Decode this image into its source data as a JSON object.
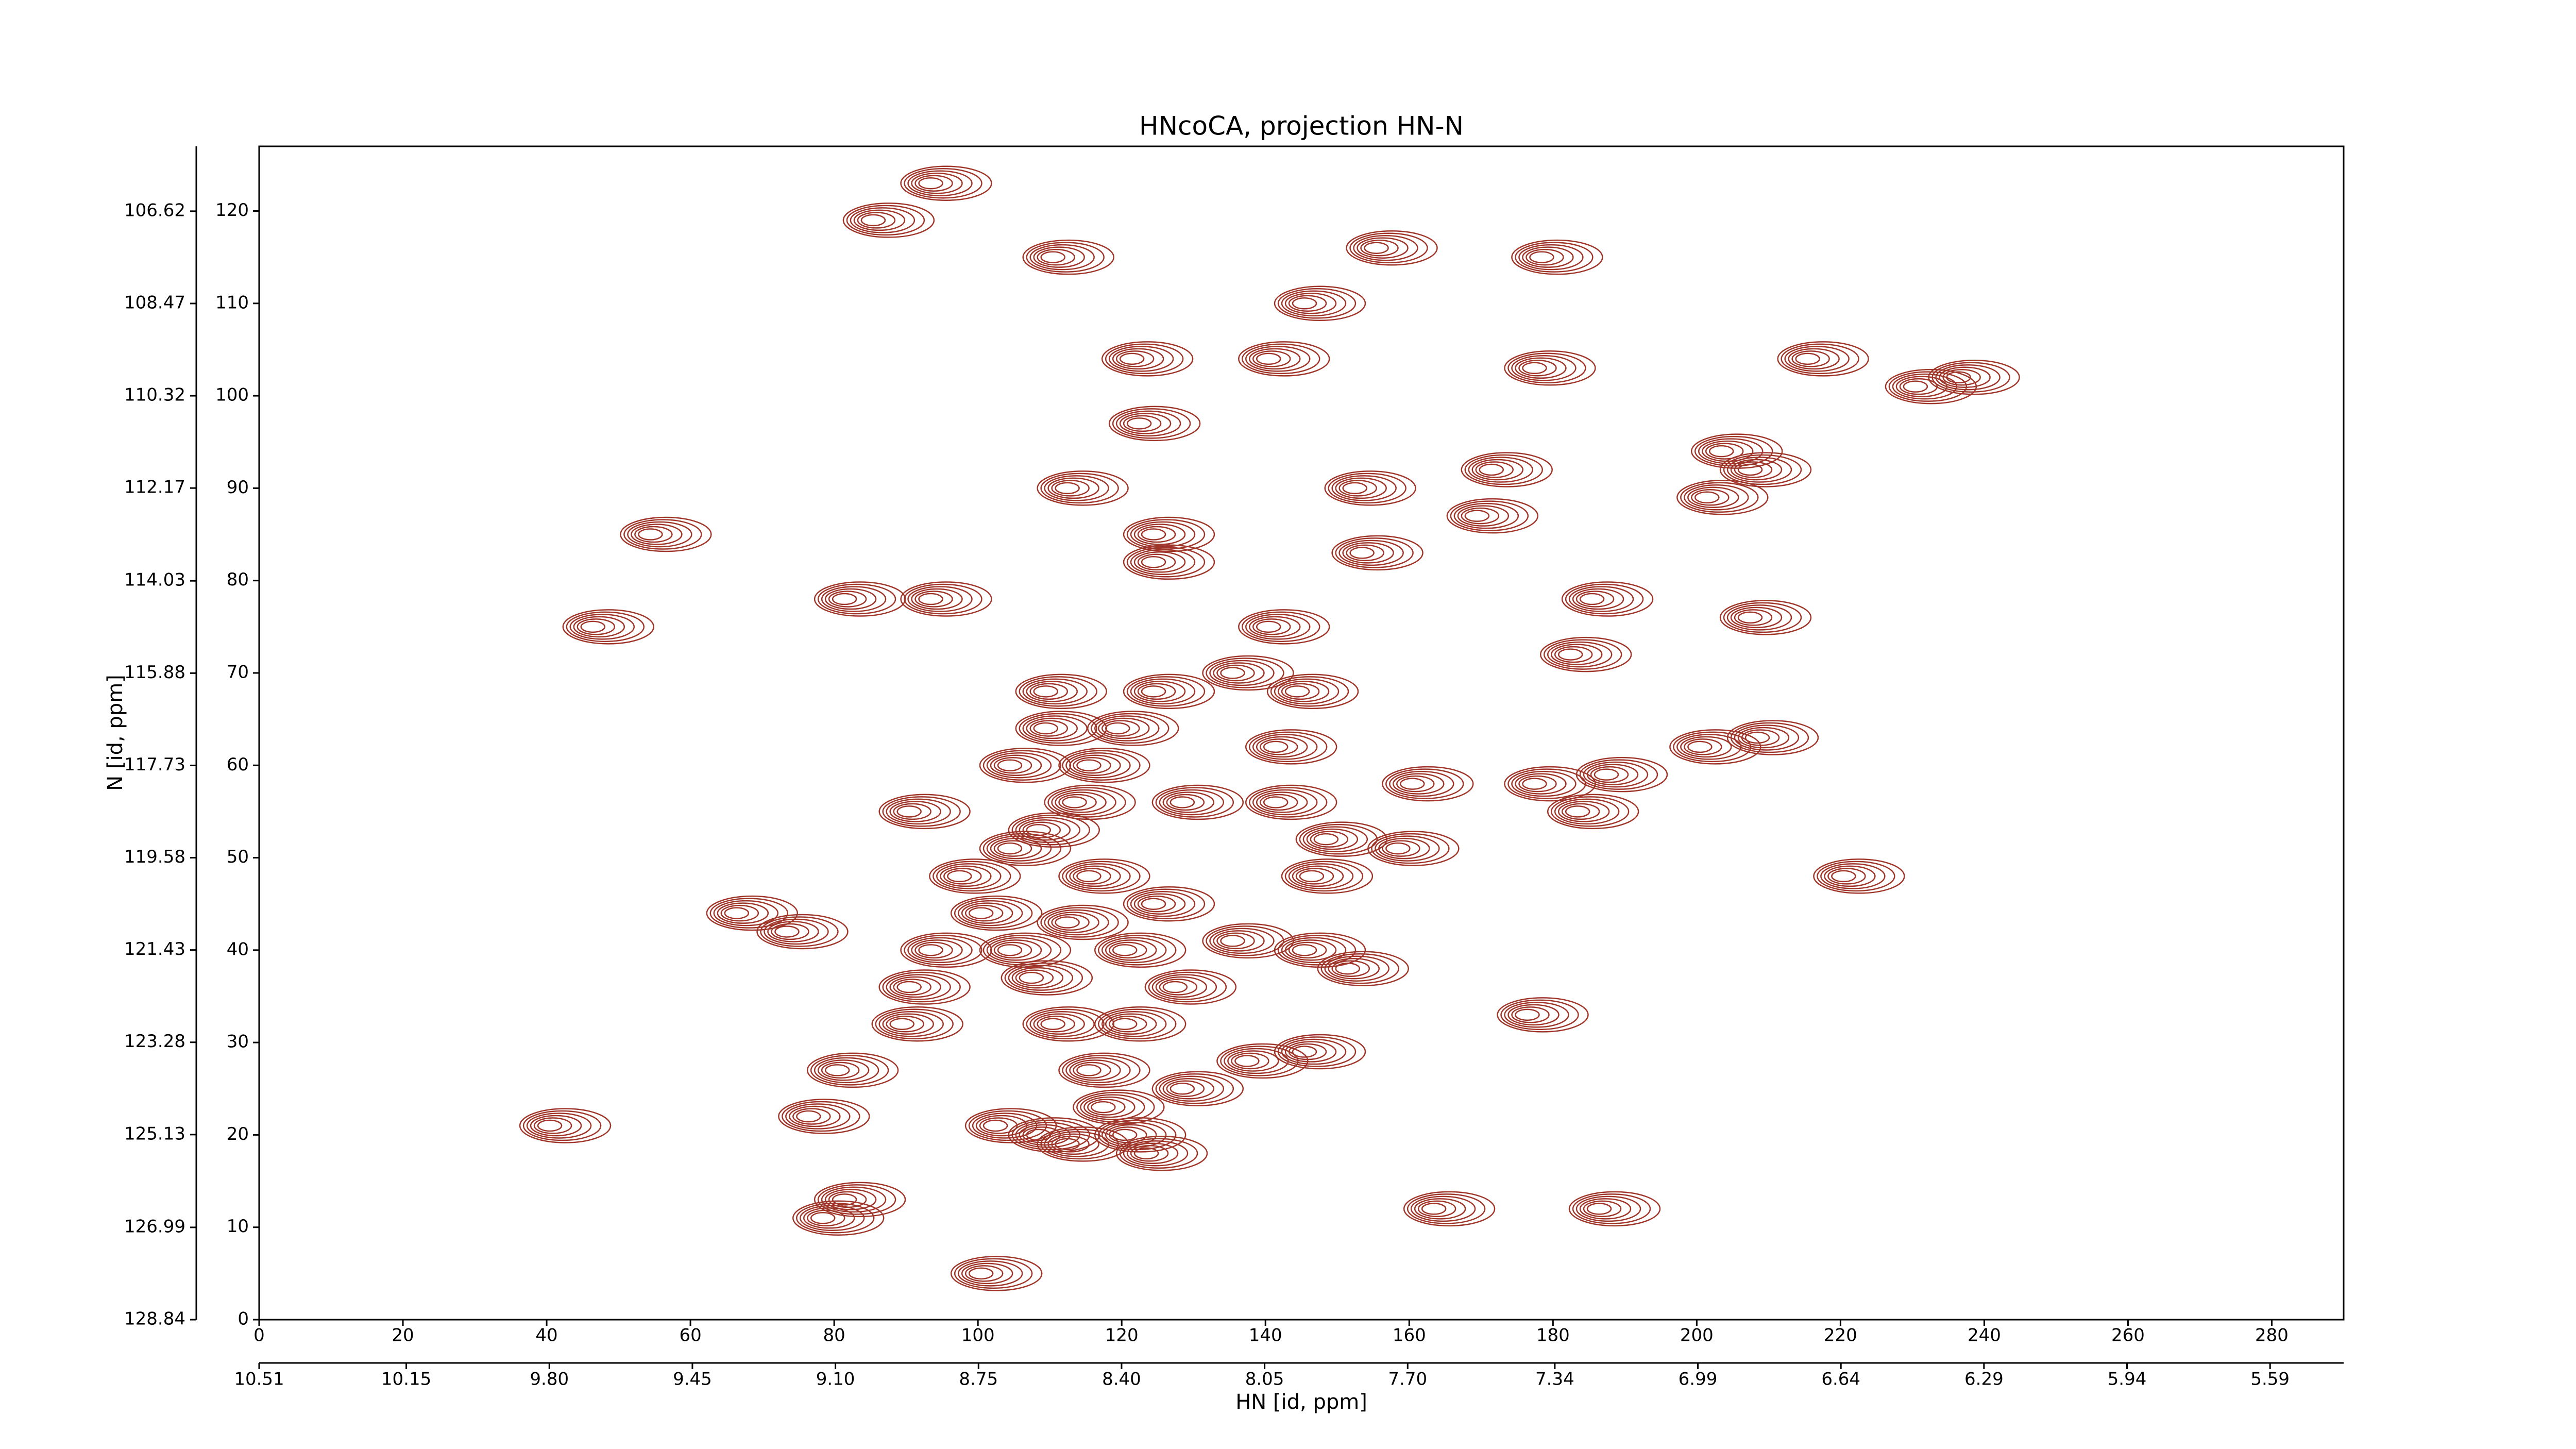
{
  "chart_data": {
    "type": "contour",
    "title": "HNcoCA, projection HN-N",
    "xlabel": "HN [id, ppm]",
    "ylabel": "N [id, ppm]",
    "color": "#a0362a",
    "x": [
      93,
      85,
      110,
      155,
      178,
      145,
      140,
      177,
      215,
      230,
      236,
      121,
      122,
      112,
      152,
      171,
      169,
      201,
      207,
      203,
      54,
      124,
      153,
      124,
      81,
      93,
      185,
      46,
      140,
      207,
      182,
      135,
      144,
      109,
      124,
      109,
      119,
      208,
      200,
      141,
      104,
      115,
      160,
      177,
      187,
      113,
      128,
      141,
      183,
      90,
      108,
      148,
      158,
      104,
      220,
      97,
      146,
      115,
      112,
      124,
      100,
      66,
      73,
      93,
      104,
      120,
      135,
      145,
      151,
      90,
      107,
      89,
      110,
      120,
      127,
      176,
      80,
      137,
      145,
      115,
      128,
      40,
      76,
      117,
      102,
      108,
      120,
      123,
      112,
      78,
      163,
      186,
      81,
      100
    ],
    "y": [
      123,
      119,
      115,
      116,
      115,
      110,
      104,
      103,
      104,
      101,
      102,
      104,
      97,
      90,
      90,
      92,
      87,
      89,
      92,
      94,
      85,
      85,
      83,
      82,
      78,
      78,
      78,
      75,
      75,
      76,
      72,
      70,
      68,
      68,
      68,
      64,
      64,
      63,
      62,
      62,
      60,
      60,
      58,
      58,
      59,
      56,
      56,
      56,
      55,
      55,
      53,
      52,
      51,
      51,
      48,
      48,
      48,
      48,
      43,
      45,
      44,
      44,
      42,
      40,
      40,
      40,
      41,
      40,
      38,
      36,
      37,
      32,
      32,
      32,
      36,
      33,
      27,
      28,
      29,
      27,
      25,
      21,
      22,
      23,
      21,
      20,
      20,
      18,
      19,
      11,
      12,
      12,
      13,
      5
    ],
    "xlim": [
      0,
      290
    ],
    "xticks": [
      0,
      20,
      40,
      60,
      80,
      100,
      120,
      140,
      160,
      180,
      200,
      220,
      240,
      260,
      280
    ],
    "ylim": [
      0,
      127
    ],
    "yticks": [
      0,
      10,
      20,
      30,
      40,
      50,
      60,
      70,
      80,
      90,
      100,
      110,
      120
    ],
    "x2lim": [
      10.51,
      5.41
    ],
    "x2ticks": [
      10.51,
      10.15,
      {
        "value": 9.8,
        "label": "9.80"
      },
      9.45,
      {
        "value": 9.1,
        "label": "9.10"
      },
      8.75,
      {
        "value": 8.4,
        "label": "8.40"
      },
      8.05,
      {
        "value": 7.7,
        "label": "7.70"
      },
      7.34,
      6.99,
      6.64,
      6.29,
      5.94,
      5.59
    ],
    "y2lim": [
      128.84,
      105.32
    ],
    "y2ticks": [
      128.84,
      126.99,
      125.13,
      123.28,
      121.43,
      119.58,
      117.73,
      115.88,
      114.03,
      112.17,
      110.32,
      108.47,
      106.62
    ]
  }
}
